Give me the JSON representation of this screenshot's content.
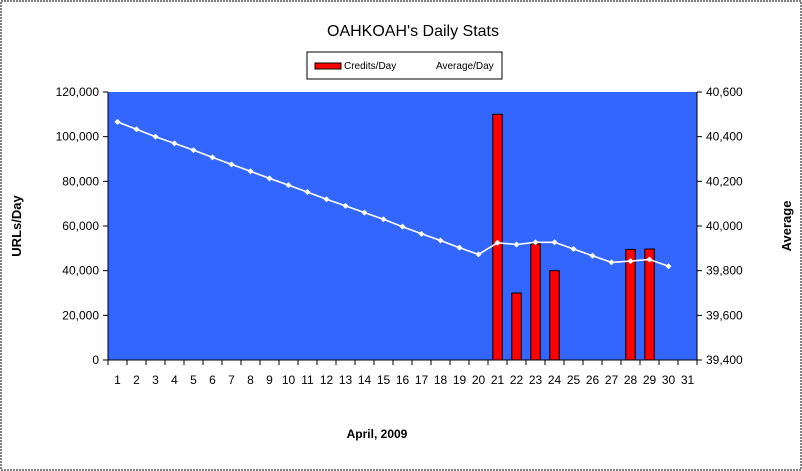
{
  "chart_data": {
    "type": "bar+line",
    "title": "OAHKOAH's Daily Stats",
    "xlabel": "April, 2009",
    "ylabel": "URLs/Day",
    "y2label": "Average",
    "categories": [
      "1",
      "2",
      "3",
      "4",
      "5",
      "6",
      "7",
      "8",
      "9",
      "10",
      "11",
      "12",
      "13",
      "14",
      "15",
      "16",
      "17",
      "18",
      "19",
      "20",
      "21",
      "22",
      "23",
      "24",
      "25",
      "26",
      "27",
      "28",
      "29",
      "30",
      "31"
    ],
    "ylim": [
      0,
      120000
    ],
    "y2lim": [
      39400,
      40600
    ],
    "yticks": [
      "0",
      "20,000",
      "40,000",
      "60,000",
      "80,000",
      "100,000",
      "120,000"
    ],
    "y2ticks": [
      "39,400",
      "39,600",
      "39,800",
      "40,000",
      "40,200",
      "40,400",
      "40,600"
    ],
    "legend_position": "top",
    "grid": false,
    "series": [
      {
        "name": "Credits/Day",
        "kind": "bar",
        "axis": "left",
        "color": "#ff0000",
        "values": [
          0,
          0,
          0,
          0,
          0,
          0,
          0,
          0,
          0,
          0,
          0,
          0,
          0,
          0,
          0,
          0,
          0,
          0,
          0,
          0,
          110000,
          30000,
          52000,
          40000,
          0,
          0,
          0,
          49500,
          49700,
          0,
          null
        ]
      },
      {
        "name": "Average/Day",
        "kind": "line",
        "axis": "right",
        "color": "#ffffff",
        "values": [
          40466,
          40433,
          40400,
          40370,
          40340,
          40307,
          40276,
          40245,
          40213,
          40183,
          40152,
          40120,
          40090,
          40060,
          40030,
          39997,
          39965,
          39935,
          39903,
          39873,
          39925,
          39917,
          39927,
          39927,
          39897,
          39867,
          39837,
          39843,
          39850,
          39820,
          null
        ]
      }
    ]
  },
  "colors": {
    "plot_background": "#3366ff",
    "bar_fill": "#ff0000",
    "line": "#ffffff"
  }
}
